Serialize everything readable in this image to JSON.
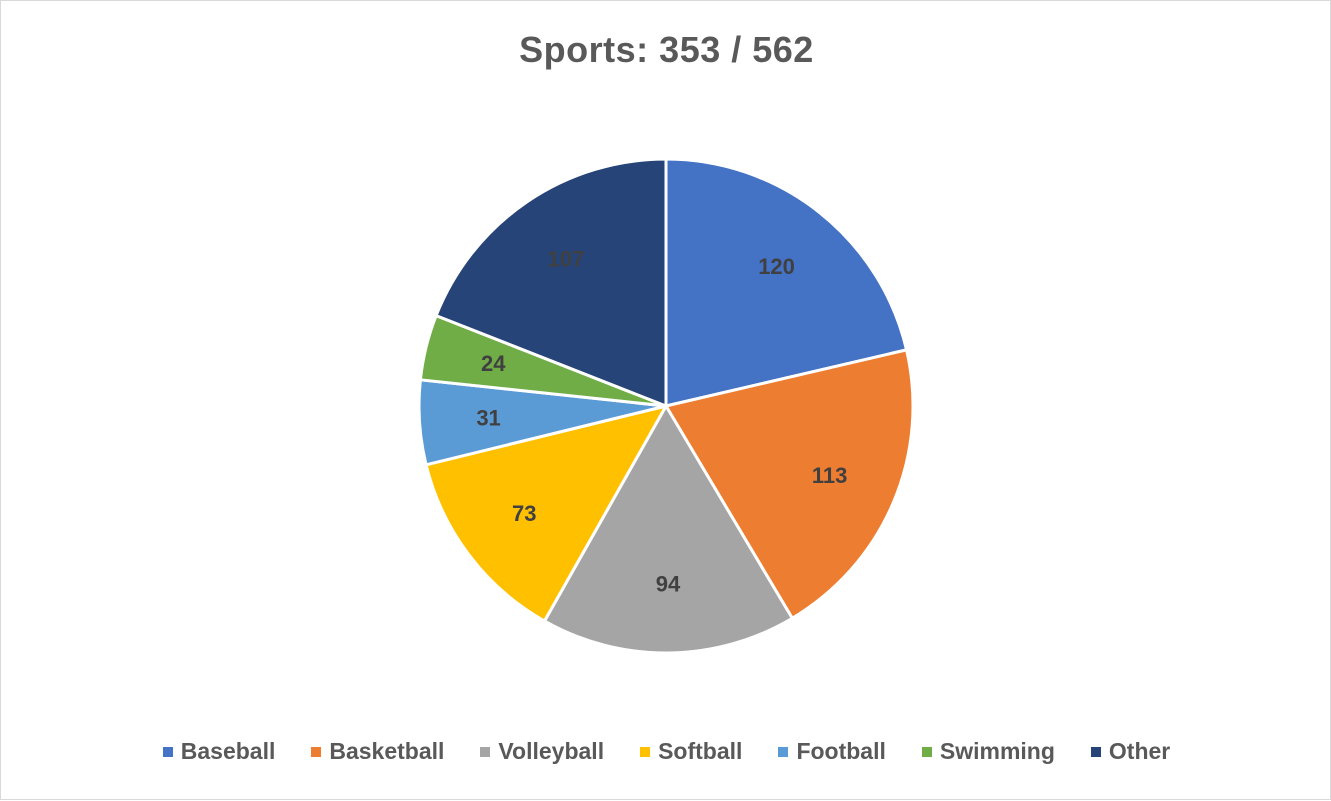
{
  "chart_data": {
    "type": "pie",
    "title": "Sports: 353 / 562",
    "categories": [
      "Baseball",
      "Basketball",
      "Volleyball",
      "Softball",
      "Football",
      "Swimming",
      "Other"
    ],
    "values": [
      120,
      113,
      94,
      73,
      31,
      24,
      107
    ],
    "colors": [
      "#4472c4",
      "#ed7d31",
      "#a5a5a5",
      "#ffc000",
      "#5b9bd5",
      "#70ad47",
      "#264478"
    ],
    "legend_position": "bottom",
    "data_labels": true
  }
}
